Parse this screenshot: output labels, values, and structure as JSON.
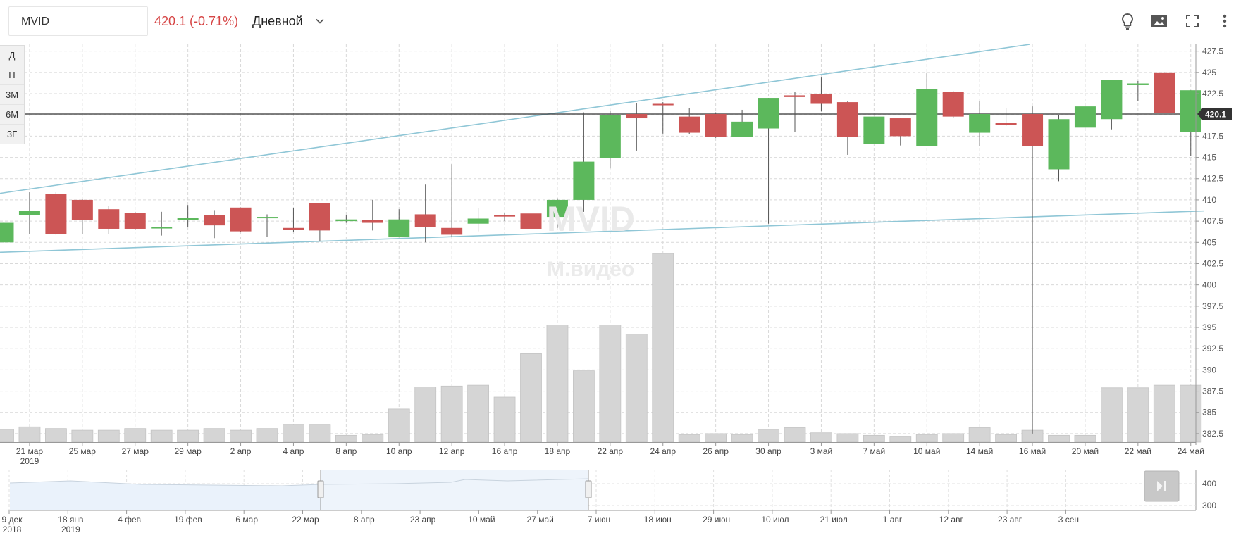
{
  "header": {
    "ticker": "MVID",
    "price_change": "420.1 (-0.71%)",
    "interval": "Дневной"
  },
  "toolbar": {
    "icons": [
      "lightbulb-icon",
      "image-icon",
      "fullscreen-icon",
      "more-vertical-icon"
    ]
  },
  "periods": [
    "Д",
    "Н",
    "3М",
    "6М",
    "3Г"
  ],
  "colors": {
    "up": "#5cb85c",
    "down": "#cc5555",
    "volume": "#d5d5d5",
    "trendline": "#8fc6d6",
    "price_line": "#333333"
  },
  "watermark": {
    "ticker": "MVID",
    "name": "М.видео"
  },
  "chart_data": [
    {
      "type": "candlestick",
      "title": "",
      "current_price_label": "420.1",
      "current_price": 420.1,
      "ylim": [
        381.5,
        428.3
      ],
      "y_ticks": [
        427.5,
        425,
        422.5,
        420,
        417.5,
        415,
        412.5,
        410,
        407.5,
        405,
        402.5,
        400,
        397.5,
        395,
        392.5,
        390,
        387.5,
        385,
        382.5
      ],
      "y_tick_labels": [
        "427.5",
        "425",
        "422.5",
        "",
        "417.5",
        "415",
        "412.5",
        "410",
        "407.5",
        "405",
        "402.5",
        "400",
        "397.5",
        "395",
        "392.5",
        "390",
        "387.5",
        "385",
        "382.5"
      ],
      "x_ticks": [
        {
          "label": "21 мар",
          "sub": "2019",
          "index": 1
        },
        {
          "label": "25 мар",
          "index": 3
        },
        {
          "label": "27 мар",
          "index": 5
        },
        {
          "label": "29 мар",
          "index": 7
        },
        {
          "label": "2 апр",
          "index": 9
        },
        {
          "label": "4 апр",
          "index": 11
        },
        {
          "label": "8 апр",
          "index": 13
        },
        {
          "label": "10 апр",
          "index": 15
        },
        {
          "label": "12 апр",
          "index": 17
        },
        {
          "label": "16 апр",
          "index": 19
        },
        {
          "label": "18 апр",
          "index": 21
        },
        {
          "label": "22 апр",
          "index": 23
        },
        {
          "label": "24 апр",
          "index": 25
        },
        {
          "label": "26 апр",
          "index": 27
        },
        {
          "label": "30 апр",
          "index": 29
        },
        {
          "label": "3 май",
          "index": 31
        },
        {
          "label": "7 май",
          "index": 33
        },
        {
          "label": "10 май",
          "index": 35
        },
        {
          "label": "14 май",
          "index": 37
        },
        {
          "label": "16 май",
          "index": 39
        },
        {
          "label": "20 май",
          "index": 41
        },
        {
          "label": "22 май",
          "index": 43
        },
        {
          "label": "24 май",
          "index": 45
        }
      ],
      "candles": [
        {
          "o": 405.0,
          "h": 407.3,
          "l": 405.0,
          "c": 407.3,
          "v": 383.0
        },
        {
          "o": 408.2,
          "h": 410.9,
          "l": 406.0,
          "c": 408.7,
          "v": 383.3
        },
        {
          "o": 410.7,
          "h": 410.9,
          "l": 405.9,
          "c": 406.0,
          "v": 383.1
        },
        {
          "o": 410.0,
          "h": 410.1,
          "l": 406.0,
          "c": 407.6,
          "v": 382.9
        },
        {
          "o": 408.9,
          "h": 409.3,
          "l": 406.0,
          "c": 406.6,
          "v": 382.9
        },
        {
          "o": 408.5,
          "h": 408.6,
          "l": 406.5,
          "c": 406.6,
          "v": 383.1
        },
        {
          "o": 406.7,
          "h": 408.6,
          "l": 405.8,
          "c": 406.8,
          "v": 382.9
        },
        {
          "o": 407.6,
          "h": 409.4,
          "l": 406.8,
          "c": 407.9,
          "v": 382.9
        },
        {
          "o": 408.2,
          "h": 408.8,
          "l": 405.5,
          "c": 407.0,
          "v": 383.1
        },
        {
          "o": 409.1,
          "h": 409.1,
          "l": 406.2,
          "c": 406.3,
          "v": 382.9
        },
        {
          "o": 408.0,
          "h": 408.3,
          "l": 405.6,
          "c": 408.0,
          "v": 383.1
        },
        {
          "o": 406.7,
          "h": 409.0,
          "l": 406.2,
          "c": 406.5,
          "v": 383.6
        },
        {
          "o": 409.6,
          "h": 409.6,
          "l": 405.1,
          "c": 406.4,
          "v": 383.6
        },
        {
          "o": 407.5,
          "h": 408.2,
          "l": 407.3,
          "c": 407.7,
          "v": 382.3
        },
        {
          "o": 407.6,
          "h": 410.0,
          "l": 406.4,
          "c": 407.3,
          "v": 382.4
        },
        {
          "o": 405.6,
          "h": 408.9,
          "l": 405.6,
          "c": 407.7,
          "v": 385.4
        },
        {
          "o": 408.3,
          "h": 411.8,
          "l": 405.0,
          "c": 406.8,
          "v": 388.0
        },
        {
          "o": 406.7,
          "h": 414.2,
          "l": 405.6,
          "c": 405.9,
          "v": 388.1
        },
        {
          "o": 407.2,
          "h": 409.0,
          "l": 406.3,
          "c": 407.8,
          "v": 388.2
        },
        {
          "o": 408.2,
          "h": 408.5,
          "l": 407.5,
          "c": 408.1,
          "v": 386.8
        },
        {
          "o": 408.4,
          "h": 408.4,
          "l": 406.0,
          "c": 406.6,
          "v": 391.9
        },
        {
          "o": 408.0,
          "h": 410.2,
          "l": 406.7,
          "c": 410.0,
          "v": 395.3
        },
        {
          "o": 410.0,
          "h": 420.3,
          "l": 408.6,
          "c": 414.5,
          "v": 389.9
        },
        {
          "o": 414.9,
          "h": 420.5,
          "l": 413.7,
          "c": 420.0,
          "v": 395.3
        },
        {
          "o": 420.1,
          "h": 421.4,
          "l": 415.8,
          "c": 419.6,
          "v": 394.2
        },
        {
          "o": 421.3,
          "h": 421.5,
          "l": 417.8,
          "c": 421.2,
          "v": 403.7
        },
        {
          "o": 419.8,
          "h": 420.8,
          "l": 417.7,
          "c": 417.9,
          "v": 382.4
        },
        {
          "o": 420.1,
          "h": 420.3,
          "l": 417.3,
          "c": 417.4,
          "v": 382.5
        },
        {
          "o": 417.4,
          "h": 420.6,
          "l": 417.4,
          "c": 419.2,
          "v": 382.4
        },
        {
          "o": 418.4,
          "h": 422.0,
          "l": 407.2,
          "c": 422.0,
          "v": 383.0
        },
        {
          "o": 422.3,
          "h": 422.7,
          "l": 418.0,
          "c": 422.1,
          "v": 383.2
        },
        {
          "o": 422.5,
          "h": 424.4,
          "l": 420.4,
          "c": 421.3,
          "v": 382.6
        },
        {
          "o": 421.5,
          "h": 421.6,
          "l": 415.3,
          "c": 417.4,
          "v": 382.5
        },
        {
          "o": 416.6,
          "h": 419.8,
          "l": 416.6,
          "c": 419.8,
          "v": 382.3
        },
        {
          "o": 419.6,
          "h": 419.6,
          "l": 416.4,
          "c": 417.5,
          "v": 382.2
        },
        {
          "o": 416.3,
          "h": 425.0,
          "l": 416.3,
          "c": 423.0,
          "v": 382.4
        },
        {
          "o": 422.7,
          "h": 422.8,
          "l": 419.6,
          "c": 419.8,
          "v": 382.5
        },
        {
          "o": 417.9,
          "h": 421.6,
          "l": 416.3,
          "c": 420.1,
          "v": 383.2
        },
        {
          "o": 419.1,
          "h": 420.8,
          "l": 418.7,
          "c": 418.8,
          "v": 382.4
        },
        {
          "o": 420.1,
          "h": 421.0,
          "l": 382.5,
          "c": 416.3,
          "v": 382.9
        },
        {
          "o": 413.6,
          "h": 420.0,
          "l": 412.2,
          "c": 419.5,
          "v": 382.3
        },
        {
          "o": 418.5,
          "h": 420.8,
          "l": 418.5,
          "c": 421.0,
          "v": 382.3
        },
        {
          "o": 419.5,
          "h": 424.1,
          "l": 418.3,
          "c": 424.1,
          "v": 387.9
        },
        {
          "o": 423.5,
          "h": 424.0,
          "l": 421.6,
          "c": 423.7,
          "v": 387.9
        },
        {
          "o": 425.0,
          "h": 425.0,
          "l": 420.2,
          "c": 420.2,
          "v": 388.2
        },
        {
          "o": 418.0,
          "h": 422.9,
          "l": 415.2,
          "c": 422.9,
          "v": 388.2
        }
      ],
      "trendlines": [
        {
          "from": [
            -0.5,
            410.6
          ],
          "to": [
            38.9,
            428.3
          ]
        },
        {
          "from": [
            -0.5,
            403.8
          ],
          "to": [
            45.5,
            408.7
          ]
        }
      ]
    },
    {
      "type": "area",
      "title": "navigator",
      "y_ticks": [
        400,
        300
      ],
      "y_tick_labels": [
        "400",
        "300"
      ],
      "x_labels": [
        {
          "label": "9 дек",
          "sub": "2018"
        },
        {
          "label": "18 янв",
          "sub": "2019"
        },
        {
          "label": "4 фев"
        },
        {
          "label": "19 фев"
        },
        {
          "label": "6 мар"
        },
        {
          "label": "22 мар"
        },
        {
          "label": "8 апр"
        },
        {
          "label": "23 апр"
        },
        {
          "label": "10 май"
        },
        {
          "label": "27 май"
        },
        {
          "label": "7 июн"
        },
        {
          "label": "18 июн"
        },
        {
          "label": "29 июн"
        },
        {
          "label": "10 июл"
        },
        {
          "label": "21 июл"
        },
        {
          "label": "1 авг"
        },
        {
          "label": "12 авг"
        },
        {
          "label": "23 авг"
        },
        {
          "label": "3 сен"
        }
      ],
      "selection": [
        "21 мар",
        "24 май"
      ]
    }
  ]
}
